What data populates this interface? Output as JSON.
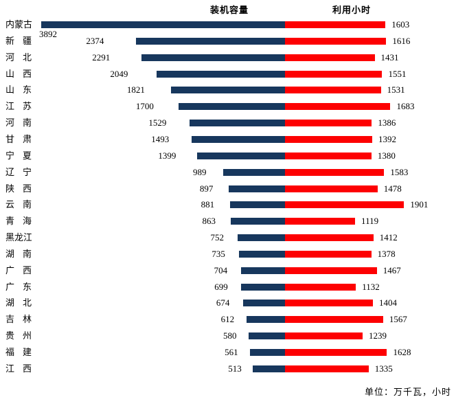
{
  "chart_data": {
    "type": "bar",
    "variant": "tornado",
    "orientation": "horizontal",
    "categories": [
      "内蒙古",
      "新疆",
      "河北",
      "山西",
      "山东",
      "江苏",
      "河南",
      "甘肃",
      "宁夏",
      "辽宁",
      "陕西",
      "云南",
      "青海",
      "黑龙江",
      "湖南",
      "广西",
      "广东",
      "湖北",
      "吉林",
      "贵州",
      "福建",
      "江西"
    ],
    "series": [
      {
        "name": "装机容量",
        "side": "left",
        "values": [
          3892,
          2374,
          2291,
          2049,
          1821,
          1700,
          1529,
          1493,
          1399,
          989,
          897,
          881,
          863,
          752,
          735,
          704,
          699,
          674,
          612,
          580,
          561,
          513
        ]
      },
      {
        "name": "利用小时",
        "side": "right",
        "values": [
          1603,
          1616,
          1431,
          1551,
          1531,
          1683,
          1386,
          1392,
          1380,
          1583,
          1478,
          1901,
          1119,
          1412,
          1378,
          1467,
          1132,
          1404,
          1567,
          1239,
          1628,
          1335
        ]
      }
    ],
    "unit_note": "单位：万千瓦，小时",
    "data_labels": "on",
    "grid": "off",
    "legend_position": "top-center-split",
    "value_range_left": [
      0,
      3892
    ],
    "value_range_right": [
      0,
      1901
    ]
  },
  "colors": {
    "capacity_bar": "#17375D",
    "hours_bar": "#FD0002",
    "text": "#000000",
    "background": "#FFFFFF"
  }
}
